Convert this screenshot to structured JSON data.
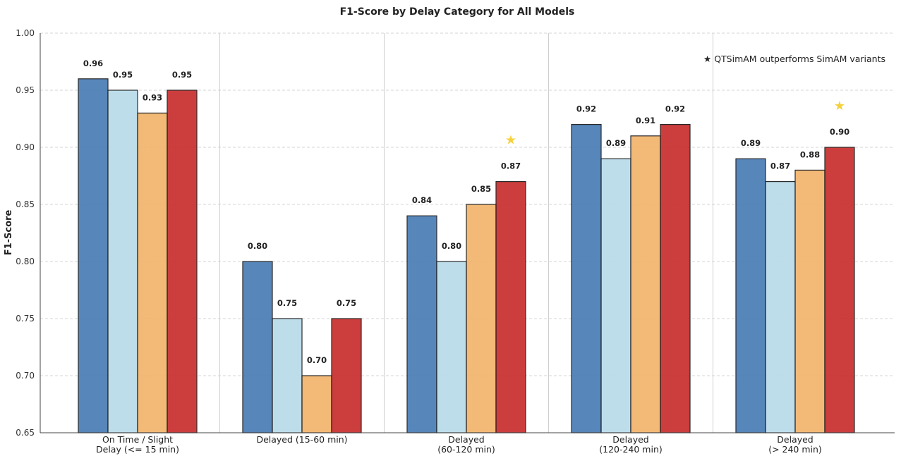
{
  "chart_data": {
    "type": "bar",
    "title": "F1-Score by Delay Category for All Models",
    "xlabel": "",
    "ylabel": "F1-Score",
    "ylim": [
      0.65,
      1.0
    ],
    "yticks": [
      "0.65",
      "0.70",
      "0.75",
      "0.80",
      "0.85",
      "0.90",
      "0.95",
      "1.00"
    ],
    "grid": "horizontal dashed",
    "categories": [
      [
        "On Time / Slight",
        "Delay (<= 15 min)"
      ],
      [
        "Delayed (15-60 min)"
      ],
      [
        "Delayed",
        "(60-120 min)"
      ],
      [
        "Delayed",
        "(120-240 min)"
      ],
      [
        "Delayed",
        "(> 240 min)"
      ]
    ],
    "series": [
      {
        "color": "#4a7db5",
        "values": [
          0.96,
          0.8,
          0.84,
          0.92,
          0.89
        ],
        "labels": [
          "0.96",
          "0.80",
          "0.84",
          "0.92",
          "0.89"
        ]
      },
      {
        "color": "#b9dbea",
        "values": [
          0.95,
          0.75,
          0.8,
          0.89,
          0.87
        ],
        "labels": [
          "0.95",
          "0.75",
          "0.80",
          "0.89",
          "0.87"
        ]
      },
      {
        "color": "#f2b46d",
        "values": [
          0.93,
          0.7,
          0.85,
          0.91,
          0.88
        ],
        "labels": [
          "0.93",
          "0.70",
          "0.85",
          "0.91",
          "0.88"
        ]
      },
      {
        "color": "#c8302f",
        "values": [
          0.95,
          0.75,
          0.87,
          0.92,
          0.9
        ],
        "labels": [
          "0.95",
          "0.75",
          "0.87",
          "0.92",
          "0.90"
        ]
      }
    ],
    "highlight_stars": {
      "categories": [
        2,
        4
      ],
      "series": 3,
      "color": "#f5d13b"
    },
    "annotation": "★ QTSimAM outperforms SimAM variants",
    "annotation_position": "top-right"
  }
}
